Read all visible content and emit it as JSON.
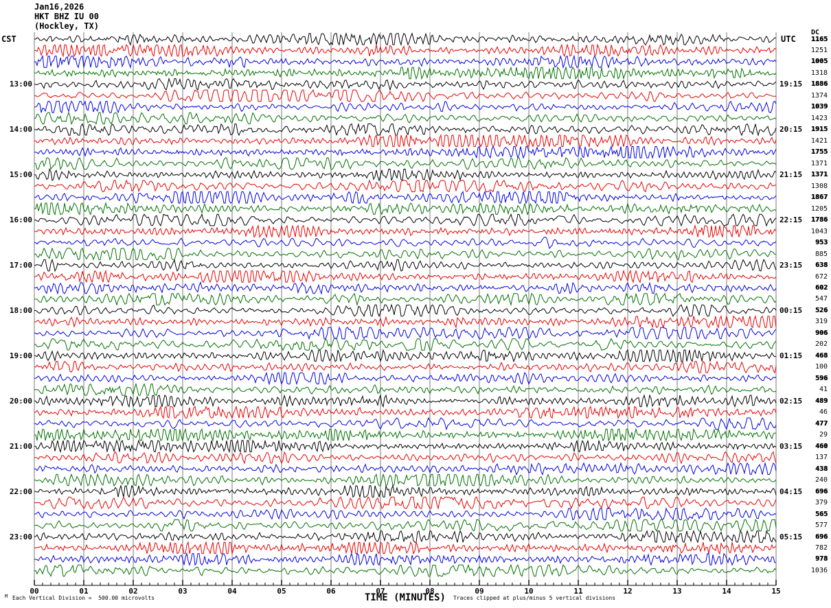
{
  "header": {
    "date_line": "Jan16,2026",
    "station_line": "HKT BHZ IU 00",
    "location_line": "(Hockley, TX)",
    "left_time_header": "CST",
    "right_time_header": "UTC",
    "dc_column_header": "DC"
  },
  "footer": {
    "marker": "M",
    "scale_note": "Each Vertical Division =  500.00 microvolts",
    "clip_note": "Traces clipped at plus/minus 5 vertical divisions"
  },
  "chart_data": {
    "type": "line",
    "variant": "helicorder-seismogram",
    "title": "HKT BHZ IU 00 (Hockley, TX) Jan16,2026",
    "xlabel": "TIME (MINUTES)",
    "x_range_minutes": [
      0,
      15
    ],
    "x_tick_labels": [
      "00",
      "01",
      "02",
      "03",
      "04",
      "05",
      "06",
      "07",
      "08",
      "09",
      "10",
      "11",
      "12",
      "13",
      "14",
      "15"
    ],
    "minor_ticks_per_major": 6,
    "rows": 48,
    "row_duration_minutes": 15,
    "grid_on": true,
    "grid_color": "#7a7a7a",
    "axis_color": "#000000",
    "trace_color_cycle": [
      "#000000",
      "#e80000",
      "#0000e0",
      "#007000"
    ],
    "left_hour_labels_cst": [
      "13:00",
      "14:00",
      "15:00",
      "16:00",
      "17:00",
      "18:00",
      "19:00",
      "20:00",
      "21:00",
      "22:00",
      "23:00"
    ],
    "right_hour_labels_utc": [
      "19:15",
      "20:15",
      "21:15",
      "22:15",
      "23:15",
      "00:15",
      "01:15",
      "02:15",
      "03:15",
      "04:15",
      "05:15"
    ],
    "hour_label_first_row_index": 4,
    "hour_label_row_step": 4,
    "dc_offsets_per_row": [
      1165,
      1251,
      1005,
      1318,
      1886,
      1374,
      1039,
      1423,
      1915,
      1421,
      1755,
      1371,
      1371,
      1308,
      1867,
      1205,
      1786,
      1043,
      953,
      885,
      638,
      672,
      602,
      547,
      526,
      319,
      906,
      202,
      468,
      100,
      596,
      41,
      489,
      46,
      477,
      29,
      460,
      137,
      438,
      240,
      696,
      379,
      565,
      577,
      696,
      782,
      978,
      1036
    ],
    "scale_note": "Each Vertical Division =  500.00 microvolts",
    "clip_note": "Traces clipped at plus/minus 5 vertical divisions",
    "waveform": "continuous ambient seismic noise traces, clipped at plus/minus 5 vertical divisions"
  }
}
